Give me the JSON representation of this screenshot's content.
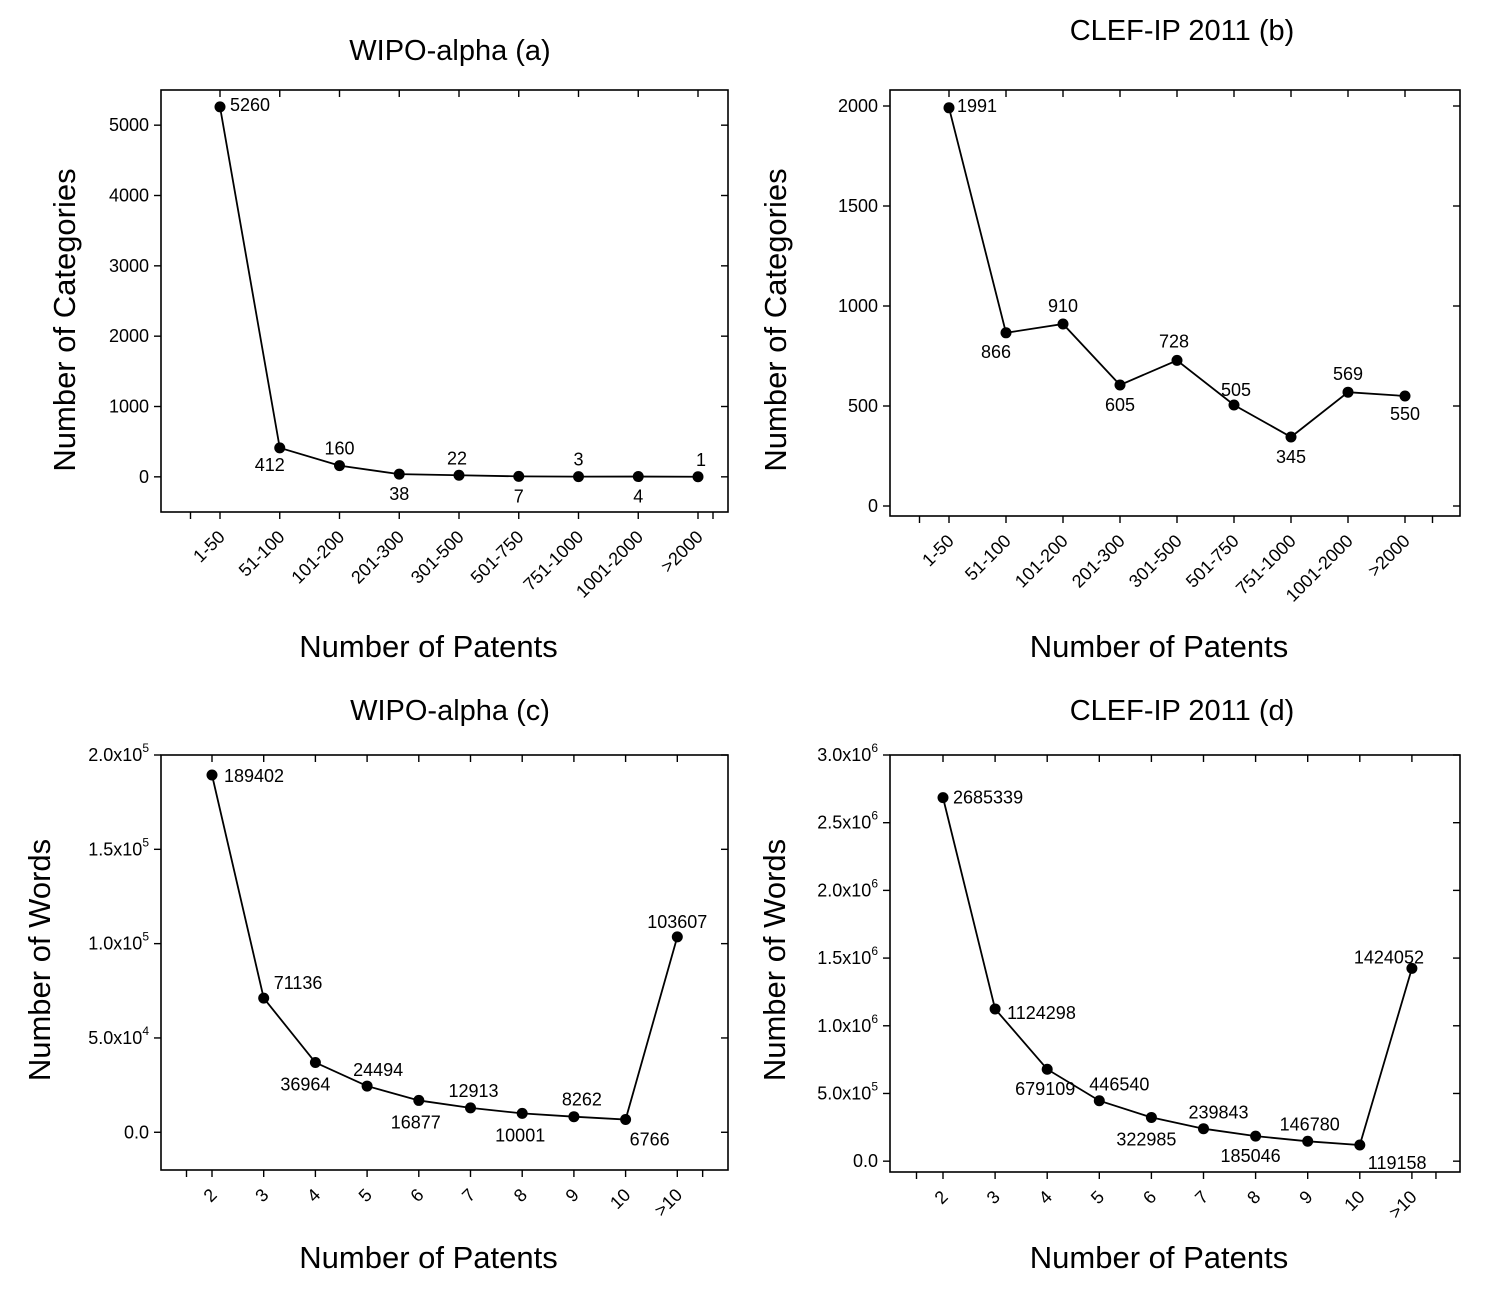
{
  "chart_data": [
    {
      "type": "line",
      "title": "WIPO-alpha (a)",
      "xlabel": "Number of Patents",
      "ylabel": "Number of Categories",
      "categories": [
        "1-50",
        "51-100",
        "101-200",
        "201-300",
        "301-500",
        "501-750",
        "751-1000",
        "1001-2000",
        ">2000"
      ],
      "values": [
        5260,
        412,
        160,
        38,
        22,
        7,
        3,
        4,
        1
      ],
      "data_labels": [
        "5260",
        "412",
        "160",
        "38",
        "22",
        "7",
        "3",
        "4",
        "1"
      ],
      "ylim": [
        -500,
        5500
      ],
      "yticks": [
        0,
        1000,
        2000,
        3000,
        4000,
        5000
      ],
      "ytick_labels": [
        "0",
        "1000",
        "2000",
        "3000",
        "4000",
        "5000"
      ],
      "grid": false,
      "legend": "none"
    },
    {
      "type": "line",
      "title": "CLEF-IP 2011 (b)",
      "xlabel": "Number of Patents",
      "ylabel": "Number of Categories",
      "categories": [
        "1-50",
        "51-100",
        "101-200",
        "201-300",
        "301-500",
        "501-750",
        "751-1000",
        "1001-2000",
        ">2000"
      ],
      "values": [
        1991,
        866,
        910,
        605,
        728,
        505,
        345,
        569,
        550
      ],
      "data_labels": [
        "1991",
        "866",
        "910",
        "605",
        "728",
        "505",
        "345",
        "569",
        "550"
      ],
      "ylim": [
        -50,
        2080
      ],
      "yticks": [
        0,
        500,
        1000,
        1500,
        2000
      ],
      "ytick_labels": [
        "0",
        "500",
        "1000",
        "1500",
        "2000"
      ],
      "grid": false,
      "legend": "none"
    },
    {
      "type": "line",
      "title": "WIPO-alpha (c)",
      "xlabel": "Number of Patents",
      "ylabel": "Number of Words",
      "categories": [
        "2",
        "3",
        "4",
        "5",
        "6",
        "7",
        "8",
        "9",
        "10",
        ">10"
      ],
      "values": [
        189402,
        71136,
        36964,
        24494,
        16877,
        12913,
        10001,
        8262,
        6766,
        103607
      ],
      "data_labels": [
        "189402",
        "71136",
        "36964",
        "24494",
        "16877",
        "12913",
        "10001",
        "8262",
        "6766",
        "103607"
      ],
      "ylim": [
        -20000,
        200000
      ],
      "yticks": [
        0,
        50000,
        100000,
        150000,
        200000
      ],
      "ytick_labels": [
        {
          "mantissa": "0.0",
          "exponent": ""
        },
        {
          "mantissa": "5.0x10",
          "exponent": "4"
        },
        {
          "mantissa": "1.0x10",
          "exponent": "5"
        },
        {
          "mantissa": "1.5x10",
          "exponent": "5"
        },
        {
          "mantissa": "2.0x10",
          "exponent": "5"
        }
      ],
      "grid": false,
      "legend": "none"
    },
    {
      "type": "line",
      "title": "CLEF-IP 2011 (d)",
      "xlabel": "Number of Patents",
      "ylabel": "Number of Words",
      "categories": [
        "2",
        "3",
        "4",
        "5",
        "6",
        "7",
        "8",
        "9",
        "10",
        ">10"
      ],
      "values": [
        2685339,
        1124298,
        679109,
        446540,
        322985,
        239843,
        185046,
        146780,
        119158,
        1424052
      ],
      "data_labels": [
        "2685339",
        "1124298",
        "679109",
        "446540",
        "322985",
        "239843",
        "185046",
        "146780",
        "119158",
        "1424052"
      ],
      "ylim": [
        -80000,
        3000000
      ],
      "yticks": [
        0,
        500000,
        1000000,
        1500000,
        2000000,
        2500000,
        3000000
      ],
      "ytick_labels": [
        {
          "mantissa": "0.0",
          "exponent": ""
        },
        {
          "mantissa": "5.0x10",
          "exponent": "5"
        },
        {
          "mantissa": "1.0x10",
          "exponent": "6"
        },
        {
          "mantissa": "1.5x10",
          "exponent": "6"
        },
        {
          "mantissa": "2.0x10",
          "exponent": "6"
        },
        {
          "mantissa": "2.5x10",
          "exponent": "6"
        },
        {
          "mantissa": "3.0x10",
          "exponent": "6"
        }
      ],
      "grid": false,
      "legend": "none"
    }
  ]
}
